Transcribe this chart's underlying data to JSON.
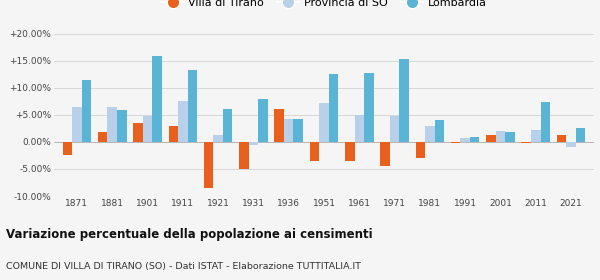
{
  "years": [
    1871,
    1881,
    1901,
    1911,
    1921,
    1931,
    1936,
    1951,
    1961,
    1971,
    1981,
    1991,
    2001,
    2011,
    2021
  ],
  "villa_tirano": [
    -2.5,
    1.8,
    3.5,
    3.0,
    -8.5,
    -5.0,
    6.0,
    -3.5,
    -3.5,
    -4.5,
    -3.0,
    -0.2,
    1.2,
    -0.3,
    1.2
  ],
  "provincia_so": [
    6.5,
    6.5,
    4.8,
    7.5,
    1.2,
    -0.5,
    4.2,
    7.2,
    5.0,
    4.8,
    3.0,
    0.7,
    2.0,
    2.2,
    -1.0
  ],
  "lombardia": [
    11.5,
    5.8,
    15.8,
    13.3,
    6.0,
    8.0,
    4.2,
    12.5,
    12.8,
    15.3,
    4.0,
    0.9,
    1.9,
    7.3,
    2.6
  ],
  "villa_color": "#e8601c",
  "prov_color": "#b8d0ea",
  "lomb_color": "#5ab4d6",
  "ylim": [
    -10.0,
    20.0
  ],
  "yticks": [
    -10.0,
    -5.0,
    0.0,
    5.0,
    10.0,
    15.0,
    20.0
  ],
  "ytick_labels": [
    "-10.00%",
    "-5.00%",
    "0.00%",
    "+5.00%",
    "+10.00%",
    "+15.00%",
    "+20.00%"
  ],
  "title": "Variazione percentuale della popolazione ai censimenti",
  "subtitle": "COMUNE DI VILLA DI TIRANO (SO) - Dati ISTAT - Elaborazione TUTTITALIA.IT",
  "legend_labels": [
    "Villa di Tirano",
    "Provincia di SO",
    "Lombardia"
  ],
  "bar_width": 0.27,
  "bg_color": "#f5f5f5"
}
